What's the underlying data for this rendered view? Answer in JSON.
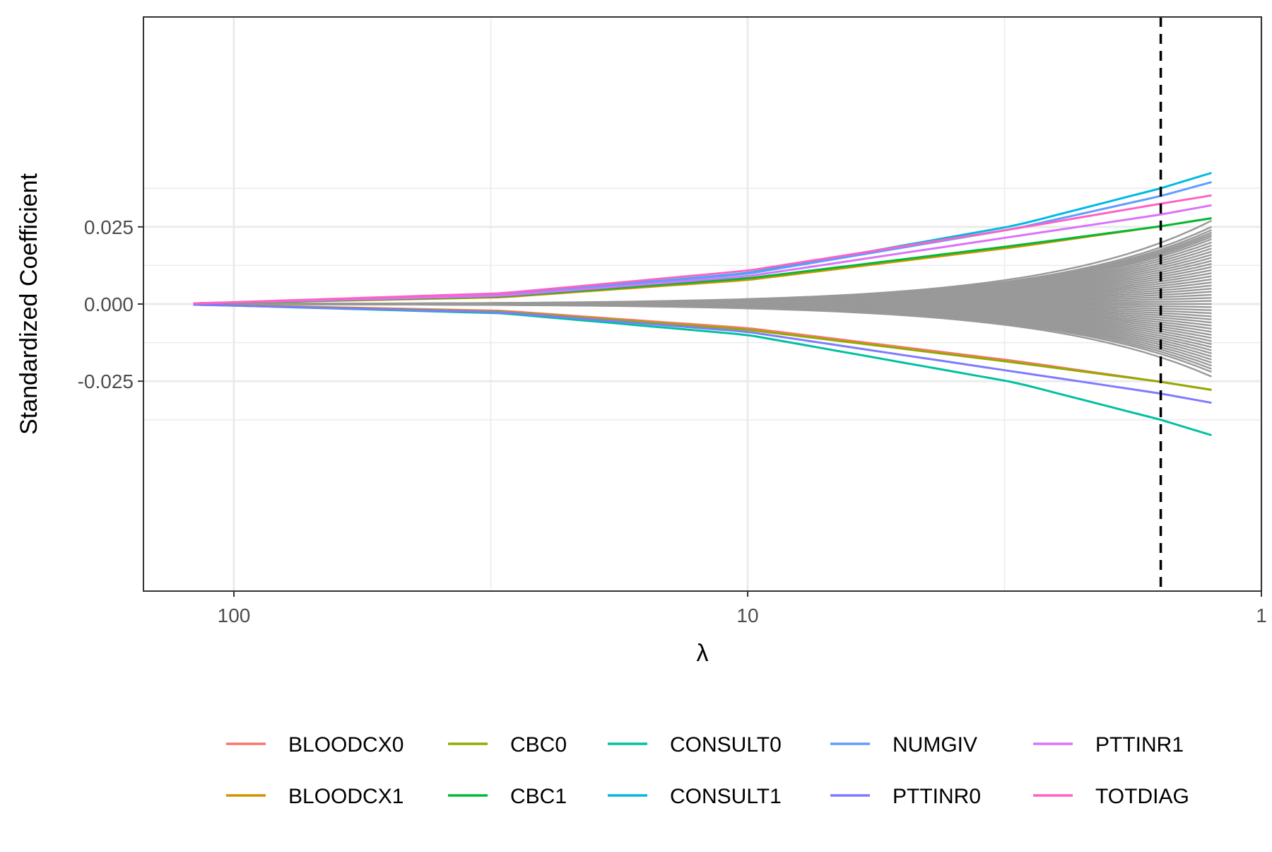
{
  "chart_data": {
    "type": "line",
    "xlabel": "λ",
    "ylabel": "Standardized Coefficient",
    "x_scale": "log10-reversed",
    "x_range": [
      150,
      1
    ],
    "y_range": [
      -0.093,
      0.093
    ],
    "x_ticks": [
      {
        "value": 100,
        "label": "100"
      },
      {
        "value": 10,
        "label": "10"
      },
      {
        "value": 1,
        "label": "1"
      }
    ],
    "y_ticks": [
      {
        "value": 0.025,
        "label": "0.025"
      },
      {
        "value": 0.0,
        "label": "0.000"
      },
      {
        "value": -0.025,
        "label": "-0.025"
      }
    ],
    "grid": true,
    "lambda_min": 120,
    "lambda_max": 1.25,
    "vline": {
      "x": 1.57,
      "style": "dashed",
      "color": "#000000"
    },
    "series": [
      {
        "name": "BLOODCX0",
        "color": "#F8766D",
        "end_value": -0.0278,
        "points": [
          [
            120,
            -0.0002
          ],
          [
            100,
            -0.0004
          ],
          [
            30,
            -0.0022
          ],
          [
            10,
            -0.0078
          ],
          [
            3,
            -0.0185
          ],
          [
            1.57,
            -0.0252
          ],
          [
            1.25,
            -0.0278
          ]
        ]
      },
      {
        "name": "BLOODCX1",
        "color": "#D39200",
        "end_value": 0.0278,
        "points": [
          [
            120,
            0.0002
          ],
          [
            100,
            0.0004
          ],
          [
            30,
            0.0022
          ],
          [
            10,
            0.0078
          ],
          [
            3,
            0.0185
          ],
          [
            1.57,
            0.0252
          ],
          [
            1.25,
            0.0278
          ]
        ]
      },
      {
        "name": "CBC0",
        "color": "#93AA00",
        "end_value": -0.0278,
        "points": [
          [
            120,
            -0.0002
          ],
          [
            100,
            -0.0004
          ],
          [
            30,
            -0.0025
          ],
          [
            10,
            -0.0083
          ],
          [
            3,
            -0.019
          ],
          [
            1.57,
            -0.0252
          ],
          [
            1.25,
            -0.0278
          ]
        ]
      },
      {
        "name": "CBC1",
        "color": "#00BA38",
        "end_value": 0.0278,
        "points": [
          [
            120,
            0.0002
          ],
          [
            100,
            0.0004
          ],
          [
            30,
            0.0025
          ],
          [
            10,
            0.0083
          ],
          [
            3,
            0.019
          ],
          [
            1.57,
            0.0252
          ],
          [
            1.25,
            0.0278
          ]
        ]
      },
      {
        "name": "CONSULT0",
        "color": "#00C19F",
        "end_value": -0.0425,
        "points": [
          [
            120,
            -0.0002
          ],
          [
            100,
            -0.0005
          ],
          [
            30,
            -0.003
          ],
          [
            10,
            -0.01
          ],
          [
            3,
            -0.0255
          ],
          [
            1.57,
            -0.0375
          ],
          [
            1.25,
            -0.0425
          ]
        ]
      },
      {
        "name": "CONSULT1",
        "color": "#00B9E3",
        "end_value": 0.0425,
        "points": [
          [
            120,
            0.0002
          ],
          [
            100,
            0.0005
          ],
          [
            30,
            0.003
          ],
          [
            10,
            0.01
          ],
          [
            3,
            0.0255
          ],
          [
            1.57,
            0.0375
          ],
          [
            1.25,
            0.0425
          ]
        ]
      },
      {
        "name": "NUMGIV",
        "color": "#619CFF",
        "end_value": 0.0395,
        "points": [
          [
            120,
            0.0002
          ],
          [
            100,
            0.0005
          ],
          [
            30,
            0.0029
          ],
          [
            10,
            0.0098
          ],
          [
            3,
            0.0245
          ],
          [
            1.57,
            0.035
          ],
          [
            1.25,
            0.0395
          ]
        ]
      },
      {
        "name": "PTTINR0",
        "color": "#7E7BFF",
        "end_value": -0.032,
        "points": [
          [
            120,
            -0.0002
          ],
          [
            100,
            -0.0005
          ],
          [
            30,
            -0.0027
          ],
          [
            10,
            -0.009
          ],
          [
            3,
            -0.022
          ],
          [
            1.57,
            -0.029
          ],
          [
            1.25,
            -0.032
          ]
        ]
      },
      {
        "name": "PTTINR1",
        "color": "#DB72FB",
        "end_value": 0.032,
        "points": [
          [
            120,
            0.0002
          ],
          [
            100,
            0.0005
          ],
          [
            30,
            0.0027
          ],
          [
            10,
            0.009
          ],
          [
            3,
            0.022
          ],
          [
            1.57,
            0.029
          ],
          [
            1.25,
            0.032
          ]
        ]
      },
      {
        "name": "TOTDIAG",
        "color": "#FF61C3",
        "end_value": 0.0352,
        "points": [
          [
            120,
            0.0002
          ],
          [
            100,
            0.0006
          ],
          [
            30,
            0.0035
          ],
          [
            10,
            0.0108
          ],
          [
            3,
            0.0245
          ],
          [
            1.57,
            0.0325
          ],
          [
            1.25,
            0.0352
          ]
        ]
      }
    ],
    "background_series": {
      "color": "#999999",
      "note": "many unlabeled coefficient paths fanning out symmetrically from 0",
      "end_values": [
        0.027,
        0.025,
        0.024,
        0.0232,
        0.0225,
        0.0218,
        0.021,
        0.02,
        0.019,
        0.018,
        0.017,
        0.016,
        0.015,
        0.014,
        0.013,
        0.012,
        0.011,
        0.01,
        0.009,
        0.008,
        0.007,
        0.006,
        0.005,
        0.004,
        0.003,
        0.002,
        0.001,
        0.0,
        -0.001,
        -0.002,
        -0.003,
        -0.004,
        -0.005,
        -0.006,
        -0.007,
        -0.008,
        -0.009,
        -0.01,
        -0.011,
        -0.012,
        -0.013,
        -0.014,
        -0.015,
        -0.016,
        -0.017,
        -0.018,
        -0.019,
        -0.02,
        -0.021,
        -0.022,
        -0.0235
      ]
    },
    "legend": {
      "position": "bottom",
      "columns": 5,
      "items": [
        "BLOODCX0",
        "BLOODCX1",
        "CBC0",
        "CBC1",
        "CONSULT0",
        "CONSULT1",
        "NUMGIV",
        "PTTINR0",
        "PTTINR1",
        "TOTDIAG"
      ]
    }
  }
}
